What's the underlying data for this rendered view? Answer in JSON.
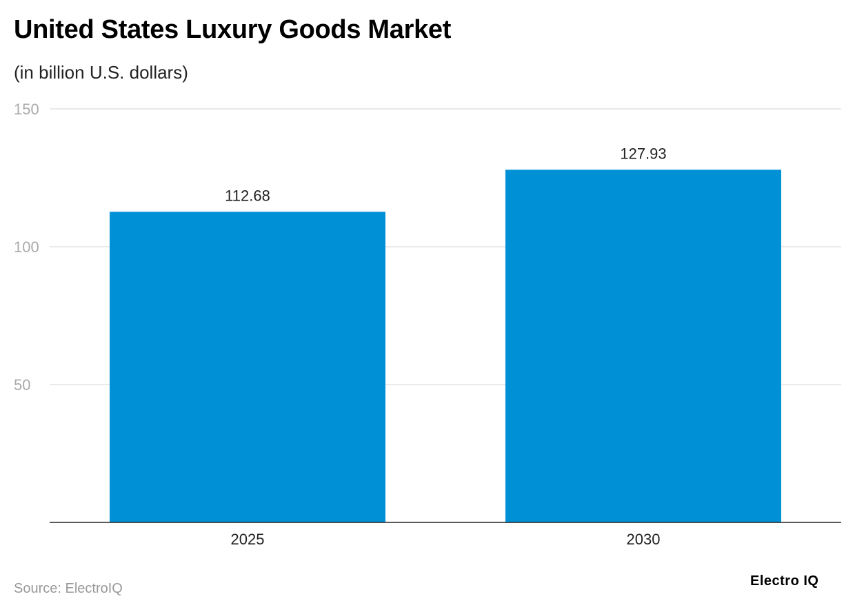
{
  "title": "United States Luxury Goods Market",
  "subtitle": "(in billion U.S. dollars)",
  "source": "Source: ElectroIQ",
  "logo": "Electro IQ",
  "chart_data": {
    "type": "bar",
    "title": "United States Luxury Goods Market",
    "subtitle": "(in billion U.S. dollars)",
    "categories": [
      "2025",
      "2030"
    ],
    "values": [
      112.68,
      127.93
    ],
    "data_labels": [
      "112.68",
      "127.93"
    ],
    "ylim": [
      0,
      150
    ],
    "yticks": [
      50,
      100,
      150
    ],
    "grid": true,
    "bar_color": "#0090d6",
    "xlabel": "",
    "ylabel": ""
  }
}
